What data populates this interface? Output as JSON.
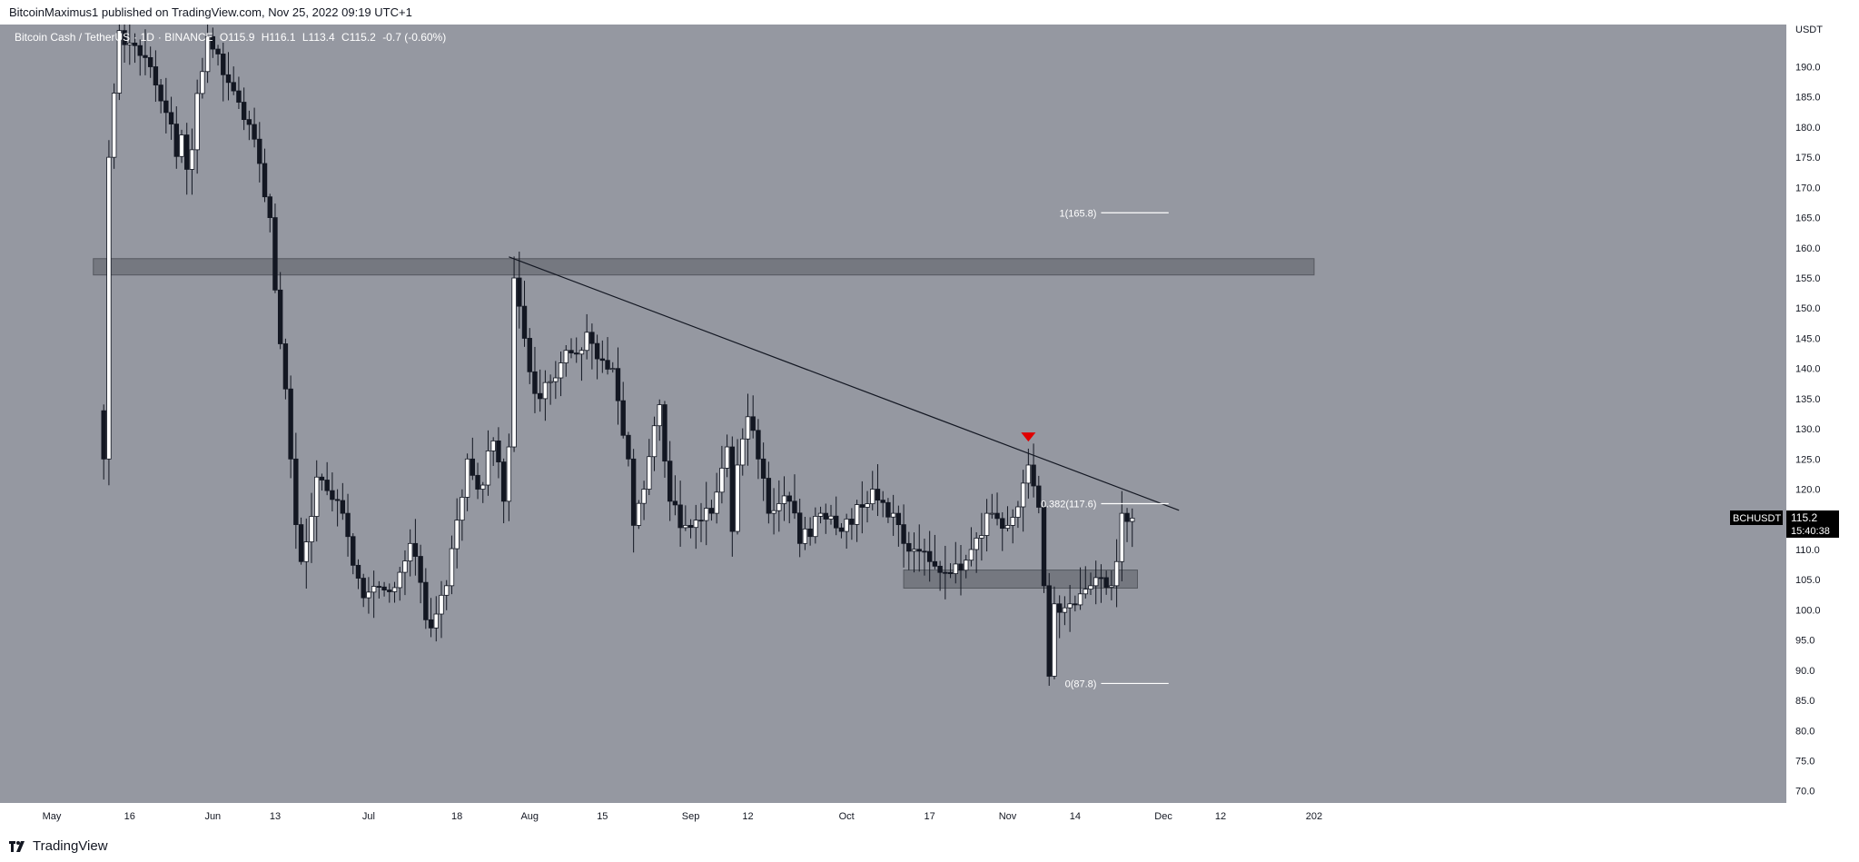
{
  "header": {
    "publisher_line": "BitcoinMaximus1 published on TradingView.com, Nov 25, 2022 09:19 UTC+1"
  },
  "legend": {
    "pair": "Bitcoin Cash / TetherUS",
    "interval": "1D",
    "exchange": "BINANCE",
    "open": "O115.9",
    "high": "H116.1",
    "low": "L113.4",
    "close": "C115.2",
    "change": "-0.7 (-0.60%)"
  },
  "price_axis": {
    "unit": "USDT",
    "current_symbol": "BCHUSDT",
    "current_price": "115.2",
    "countdown": "15:40:38"
  },
  "footer": {
    "brand": "TradingView"
  },
  "colors": {
    "background": "#9598a1",
    "up_candle": "#ffffff",
    "down_candle": "#131722",
    "wick": "#131722",
    "zone": "#6b6e76",
    "marker": "#e00000"
  },
  "chart_data": {
    "type": "candlestick",
    "symbol": "BCHUSDT",
    "ylim": [
      68,
      197
    ],
    "y_ticks": [
      "70.0",
      "75.0",
      "80.0",
      "85.0",
      "90.0",
      "95.0",
      "100.0",
      "105.0",
      "110.0",
      "115.0",
      "120.0",
      "125.0",
      "130.0",
      "135.0",
      "140.0",
      "145.0",
      "150.0",
      "155.0",
      "160.0",
      "165.0",
      "170.0",
      "175.0",
      "180.0",
      "185.0",
      "190.0"
    ],
    "x_ticks": [
      {
        "label": "May",
        "date": "2022-05-01"
      },
      {
        "label": "16",
        "date": "2022-05-16"
      },
      {
        "label": "Jun",
        "date": "2022-06-01"
      },
      {
        "label": "13",
        "date": "2022-06-13"
      },
      {
        "label": "Jul",
        "date": "2022-07-01"
      },
      {
        "label": "18",
        "date": "2022-07-18"
      },
      {
        "label": "Aug",
        "date": "2022-08-01"
      },
      {
        "label": "15",
        "date": "2022-08-15"
      },
      {
        "label": "Sep",
        "date": "2022-09-01"
      },
      {
        "label": "12",
        "date": "2022-09-12"
      },
      {
        "label": "Oct",
        "date": "2022-10-01"
      },
      {
        "label": "17",
        "date": "2022-10-17"
      },
      {
        "label": "Nov",
        "date": "2022-11-01"
      },
      {
        "label": "14",
        "date": "2022-11-14"
      },
      {
        "label": "Dec",
        "date": "2022-12-01"
      },
      {
        "label": "12",
        "date": "2022-12-12"
      },
      {
        "label": "202",
        "date": "2022-12-30"
      }
    ],
    "anchors": [
      {
        "date": "2022-05-11",
        "price": 125
      },
      {
        "date": "2022-05-12",
        "price": 175
      },
      {
        "date": "2022-05-14",
        "price": 196
      },
      {
        "date": "2022-05-20",
        "price": 190
      },
      {
        "date": "2022-05-27",
        "price": 173
      },
      {
        "date": "2022-05-31",
        "price": 195
      },
      {
        "date": "2022-06-05",
        "price": 186
      },
      {
        "date": "2022-06-09",
        "price": 178
      },
      {
        "date": "2022-06-12",
        "price": 165
      },
      {
        "date": "2022-06-13",
        "price": 153
      },
      {
        "date": "2022-06-16",
        "price": 125
      },
      {
        "date": "2022-06-18",
        "price": 108
      },
      {
        "date": "2022-06-21",
        "price": 122
      },
      {
        "date": "2022-06-26",
        "price": 116
      },
      {
        "date": "2022-06-30",
        "price": 102
      },
      {
        "date": "2022-07-05",
        "price": 103
      },
      {
        "date": "2022-07-09",
        "price": 111
      },
      {
        "date": "2022-07-13",
        "price": 97
      },
      {
        "date": "2022-07-16",
        "price": 104
      },
      {
        "date": "2022-07-20",
        "price": 125
      },
      {
        "date": "2022-07-22",
        "price": 120
      },
      {
        "date": "2022-07-25",
        "price": 128
      },
      {
        "date": "2022-07-27",
        "price": 118
      },
      {
        "date": "2022-07-28",
        "price": 127
      },
      {
        "date": "2022-07-29",
        "price": 155
      },
      {
        "date": "2022-07-31",
        "price": 145
      },
      {
        "date": "2022-08-03",
        "price": 135
      },
      {
        "date": "2022-08-08",
        "price": 143
      },
      {
        "date": "2022-08-11",
        "price": 143
      },
      {
        "date": "2022-08-12",
        "price": 146
      },
      {
        "date": "2022-08-17",
        "price": 140
      },
      {
        "date": "2022-08-20",
        "price": 125
      },
      {
        "date": "2022-08-21",
        "price": 114
      },
      {
        "date": "2022-08-23",
        "price": 120
      },
      {
        "date": "2022-08-26",
        "price": 134
      },
      {
        "date": "2022-08-28",
        "price": 118
      },
      {
        "date": "2022-08-31",
        "price": 114
      },
      {
        "date": "2022-09-05",
        "price": 116
      },
      {
        "date": "2022-09-08",
        "price": 127
      },
      {
        "date": "2022-09-09",
        "price": 113
      },
      {
        "date": "2022-09-10",
        "price": 124
      },
      {
        "date": "2022-09-12",
        "price": 132
      },
      {
        "date": "2022-09-14",
        "price": 125
      },
      {
        "date": "2022-09-16",
        "price": 116
      },
      {
        "date": "2022-09-20",
        "price": 118
      },
      {
        "date": "2022-09-22",
        "price": 111
      },
      {
        "date": "2022-09-26",
        "price": 116
      },
      {
        "date": "2022-09-30",
        "price": 113
      },
      {
        "date": "2022-10-04",
        "price": 117
      },
      {
        "date": "2022-10-06",
        "price": 120
      },
      {
        "date": "2022-10-10",
        "price": 116
      },
      {
        "date": "2022-10-12",
        "price": 111
      },
      {
        "date": "2022-10-17",
        "price": 108
      },
      {
        "date": "2022-10-21",
        "price": 106
      },
      {
        "date": "2022-10-25",
        "price": 110
      },
      {
        "date": "2022-10-28",
        "price": 116
      },
      {
        "date": "2022-11-01",
        "price": 114
      },
      {
        "date": "2022-11-04",
        "price": 121
      },
      {
        "date": "2022-11-05",
        "price": 124
      },
      {
        "date": "2022-11-07",
        "price": 117
      },
      {
        "date": "2022-11-08",
        "price": 104
      },
      {
        "date": "2022-11-09",
        "price": 89
      },
      {
        "date": "2022-11-10",
        "price": 101
      },
      {
        "date": "2022-11-13",
        "price": 101
      },
      {
        "date": "2022-11-17",
        "price": 104
      },
      {
        "date": "2022-11-21",
        "price": 104
      },
      {
        "date": "2022-11-22",
        "price": 108
      },
      {
        "date": "2022-11-23",
        "price": 116
      },
      {
        "date": "2022-11-25",
        "price": 115.2
      }
    ],
    "horizontal_zones": [
      {
        "low": 155.5,
        "high": 158.2,
        "from": "2022-05-09",
        "to": "2022-12-30"
      },
      {
        "low": 103.6,
        "high": 106.6,
        "from": "2022-10-12",
        "to": "2022-11-26"
      }
    ],
    "trendline": {
      "from": {
        "date": "2022-07-28",
        "price": 158.5
      },
      "to": {
        "date": "2022-12-04",
        "price": 116.5
      }
    },
    "fib_levels": [
      {
        "label": "1(165.8)",
        "price": 165.8
      },
      {
        "label": "0.382(117.6)",
        "price": 117.6
      },
      {
        "label": "0(87.8)",
        "price": 87.8
      }
    ],
    "marker": {
      "date": "2022-11-05",
      "price": 128.5
    }
  }
}
